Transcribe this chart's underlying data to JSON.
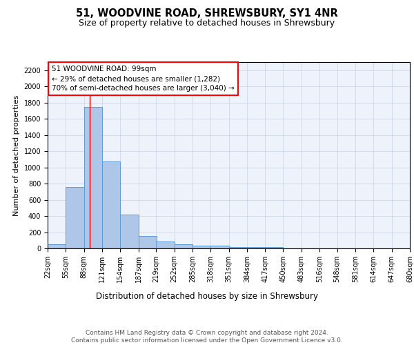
{
  "title": "51, WOODVINE ROAD, SHREWSBURY, SY1 4NR",
  "subtitle": "Size of property relative to detached houses in Shrewsbury",
  "xlabel": "Distribution of detached houses by size in Shrewsbury",
  "ylabel": "Number of detached properties",
  "bar_color": "#aec6e8",
  "bar_edge_color": "#5b9bd5",
  "background_color": "#eef2fb",
  "grid_color": "#c8d0e8",
  "annotation_text": "51 WOODVINE ROAD: 99sqm\n← 29% of detached houses are smaller (1,282)\n70% of semi-detached houses are larger (3,040) →",
  "red_line_x": 99,
  "bins": [
    22,
    55,
    88,
    121,
    154,
    187,
    219,
    252,
    285,
    318,
    351,
    384,
    417,
    450,
    483,
    516,
    548,
    581,
    614,
    647,
    680
  ],
  "bar_heights": [
    55,
    760,
    1750,
    1075,
    420,
    155,
    85,
    47,
    35,
    30,
    20,
    15,
    20,
    0,
    0,
    0,
    0,
    0,
    0,
    0
  ],
  "ylim": [
    0,
    2300
  ],
  "yticks": [
    0,
    200,
    400,
    600,
    800,
    1000,
    1200,
    1400,
    1600,
    1800,
    2000,
    2200
  ],
  "footer": "Contains HM Land Registry data © Crown copyright and database right 2024.\nContains public sector information licensed under the Open Government Licence v3.0.",
  "footer_fontsize": 6.5,
  "title_fontsize": 10.5,
  "subtitle_fontsize": 9,
  "xlabel_fontsize": 8.5,
  "ylabel_fontsize": 8,
  "tick_fontsize": 7,
  "annot_fontsize": 7.5
}
